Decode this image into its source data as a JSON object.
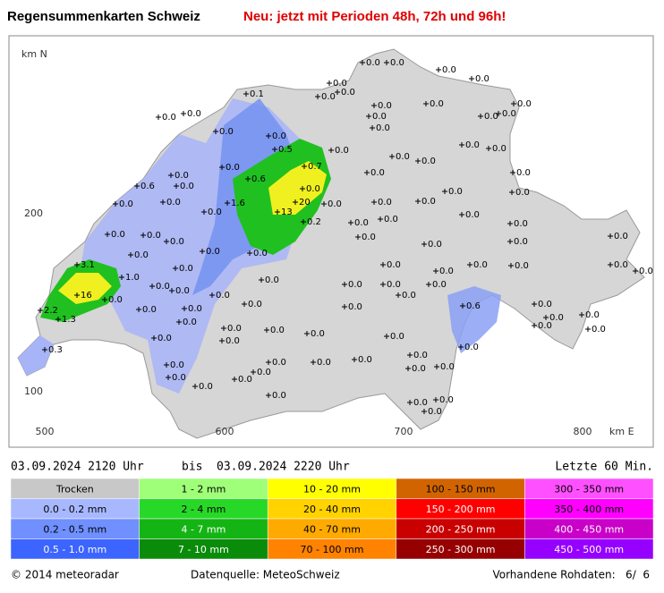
{
  "header": {
    "title": "Regensummenkarten Schweiz",
    "notice": "Neu: jetzt mit Perioden 48h, 72h und 96h!"
  },
  "map": {
    "axis_y_label": "km N",
    "axis_x_label": "km E",
    "y_ticks": [
      "200",
      "100"
    ],
    "x_ticks": [
      "500",
      "600",
      "700",
      "800"
    ],
    "stations": [
      "0.0",
      "0.0",
      "0.0",
      "0.0",
      "0.0",
      "0.0",
      "0.0",
      "0.1",
      "0.0",
      "0.0",
      "0.0",
      "0.0",
      "0.0",
      "0.0",
      "0.0",
      "0.0",
      "0.0",
      "0.0",
      "0.0",
      "0.0",
      "0.0",
      "0.5",
      "0.0",
      "0.0",
      "0.0",
      "0.7",
      "0.0",
      "0.0",
      "0.0",
      "0.0",
      "0.6",
      "0.0",
      "0.6",
      "0.0",
      "0.0",
      "0.0",
      "0.0",
      "0.0",
      "0.0",
      "1.6",
      "20",
      "13",
      "0.0",
      "0.0",
      "0.0",
      "0.0",
      "0.2",
      "0.0",
      "0.0",
      "0.0",
      "0.0",
      "0.0",
      "0.0",
      "0.0",
      "0.0",
      "0.0",
      "0.0",
      "0.0",
      "0.0",
      "3.1",
      "0.0",
      "0.0",
      "0.0",
      "0.0",
      "0.0",
      "0.0",
      "0.0",
      "0.0",
      "1.0",
      "0.0",
      "0.0",
      "0.0",
      "0.0",
      "16",
      "0.0",
      "0.0",
      "0.0",
      "0.0",
      "0.0",
      "2.2",
      "1.3",
      "0.0",
      "0.0",
      "0.0",
      "0.0",
      "0.6",
      "0.0",
      "0.0",
      "0.0",
      "0.0",
      "0.0",
      "0.0",
      "0.0",
      "0.0",
      "0.0",
      "0.0",
      "0.3",
      "0.0",
      "0.0",
      "0.0",
      "0.0",
      "0.0",
      "0.0",
      "0.0",
      "0.0",
      "0.0",
      "0.0",
      "0.0",
      "0.0",
      "0.0",
      "0.0",
      "0.0",
      "0.0",
      "0.0",
      "0.0"
    ]
  },
  "period": {
    "from": "03.09.2024  2120 Uhr",
    "separator": "bis",
    "to": "03.09.2024  2220 Uhr",
    "duration": "Letzte 60 Min."
  },
  "legend": [
    [
      "Trocken",
      "0.0 - 0.2 mm",
      "0.2 - 0.5 mm",
      "0.5 - 1.0 mm"
    ],
    [
      "1 - 2 mm",
      "2 - 4 mm",
      "4 - 7 mm",
      "7 - 10 mm"
    ],
    [
      "10 - 20 mm",
      "20 - 40 mm",
      "40 - 70 mm",
      "70 - 100 mm"
    ],
    [
      "100 - 150 mm",
      "150 - 200 mm",
      "200 - 250 mm",
      "250 - 300 mm"
    ],
    [
      "300 - 350 mm",
      "350 - 400 mm",
      "400 - 450 mm",
      "450 - 500 mm"
    ]
  ],
  "footer": {
    "copyright": "© 2014 meteoradar",
    "source": "Datenquelle: MeteoSchweiz",
    "raw_data": "Vorhandene Rohdaten:   6/  6"
  }
}
